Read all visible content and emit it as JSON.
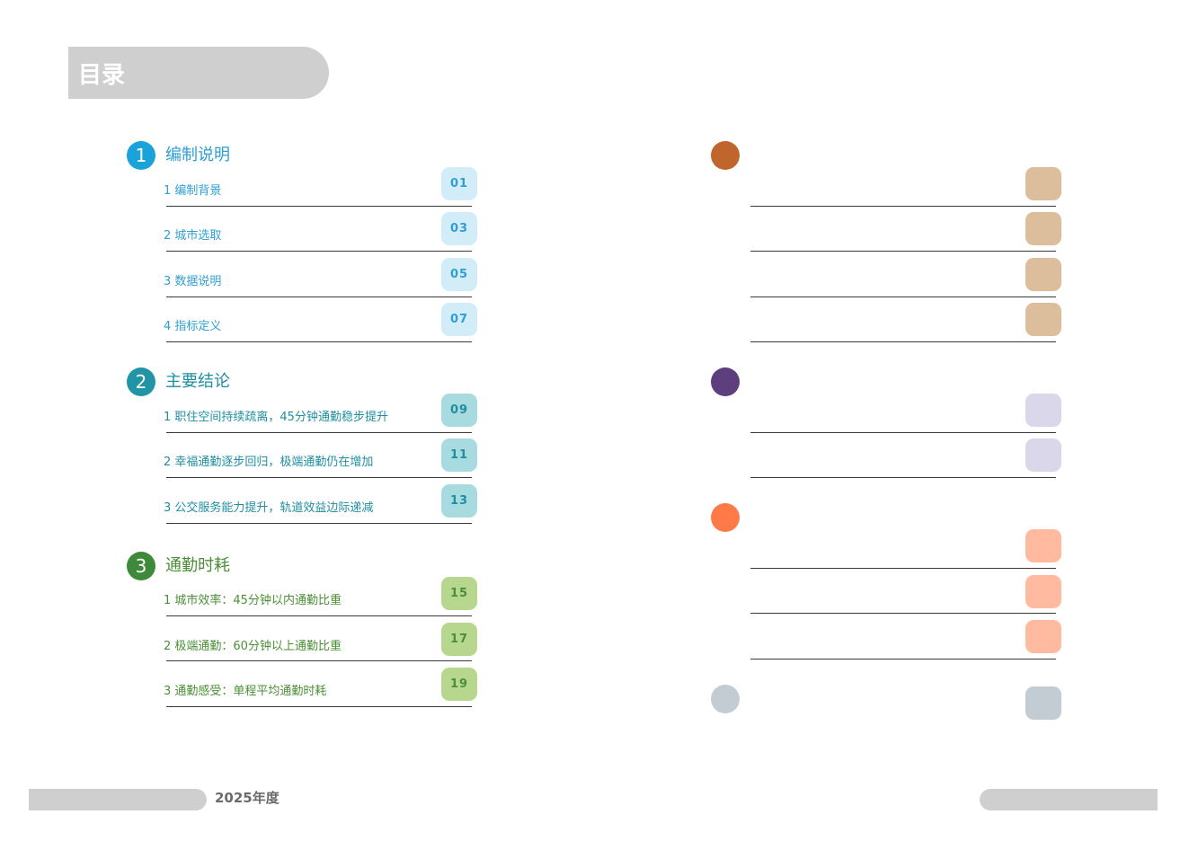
{
  "header": {
    "title": "目录"
  },
  "footer": {
    "year": "2025年度"
  },
  "colors": {
    "s1": "#1aa3d9",
    "s1_text": "#2f9fd3",
    "s1_badge_bg": "#d2ecf8",
    "s2": "#2195a6",
    "s2_text": "#1f8ea0",
    "s2_badge_bg": "#a8dbe0",
    "s3": "#3f8a3a",
    "s3_text": "#4a8f35",
    "s3_badge_bg": "#b8d78e",
    "r1": "#c0652b",
    "r1_badge": "#ddbe9c",
    "r2": "#5e3f7e",
    "r2_badge": "#dad7ea",
    "r3": "#ff7a47",
    "r3_badge": "#ffbaa0",
    "r4": "#c3cbd3",
    "r4_badge": "#c3cbd3"
  },
  "sections": [
    {
      "number": "1",
      "title": "编制说明",
      "items": [
        {
          "label": "1 编制背景",
          "page": "01"
        },
        {
          "label": "2 城市选取",
          "page": "03"
        },
        {
          "label": "3 数据说明",
          "page": "05"
        },
        {
          "label": "4 指标定义",
          "page": "07"
        }
      ]
    },
    {
      "number": "2",
      "title": "主要结论",
      "items": [
        {
          "label": "1 职住空间持续疏离，45分钟通勤稳步提升",
          "page": "09"
        },
        {
          "label": "2 幸福通勤逐步回归，极端通勤仍在增加",
          "page": "11"
        },
        {
          "label": "3 公交服务能力提升，轨道效益边际递减",
          "page": "13"
        }
      ]
    },
    {
      "number": "3",
      "title": "通勤时耗",
      "items": [
        {
          "label": "1 城市效率：45分钟以内通勤比重",
          "page": "15"
        },
        {
          "label": "2 极端通勤：60分钟以上通勤比重",
          "page": "17"
        },
        {
          "label": "3 通勤感受：单程平均通勤时耗",
          "page": "19"
        }
      ]
    }
  ]
}
